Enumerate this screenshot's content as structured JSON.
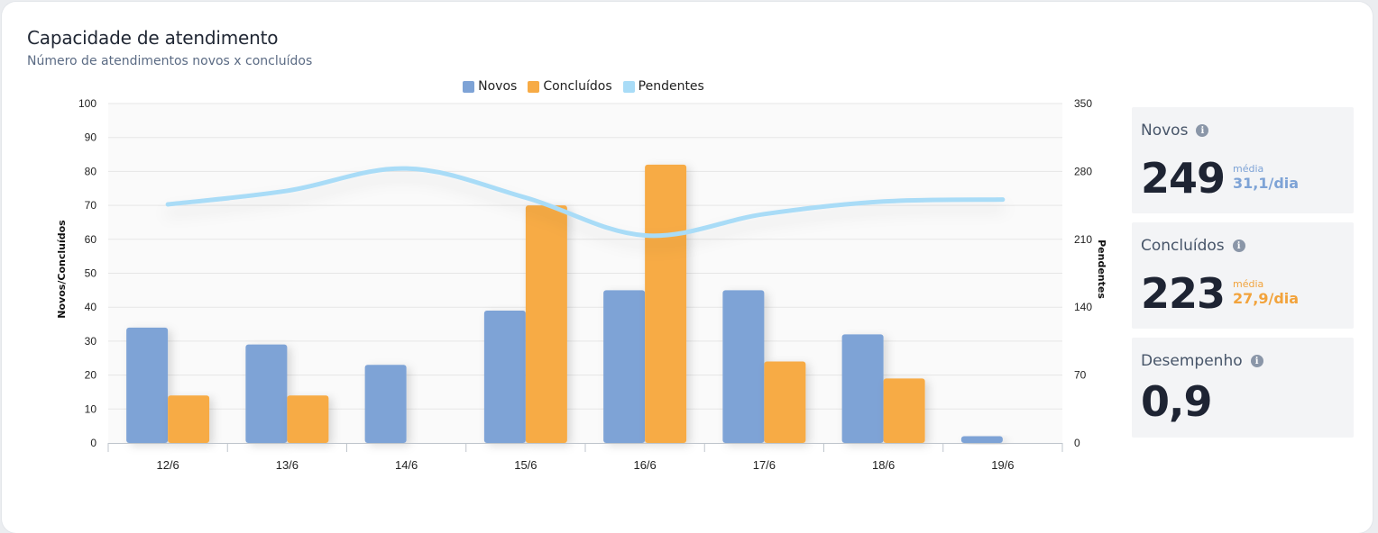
{
  "card": {
    "title": "Capacidade de atendimento",
    "subtitle": "Número de atendimentos novos x concluídos"
  },
  "colors": {
    "novos": "#7ea3d6",
    "concluidos": "#f7ab45",
    "pendentes": "#a9dcf7",
    "media_novos": "#7ea3d6",
    "media_concluidos": "#f2a33c"
  },
  "chart_data": {
    "type": "bar",
    "categories": [
      "12/6",
      "13/6",
      "14/6",
      "15/6",
      "16/6",
      "17/6",
      "18/6",
      "19/6"
    ],
    "series": [
      {
        "name": "Novos",
        "type": "bar",
        "axis": "left",
        "values": [
          34,
          29,
          23,
          39,
          45,
          45,
          32,
          2
        ]
      },
      {
        "name": "Concluídos",
        "type": "bar",
        "axis": "left",
        "values": [
          14,
          14,
          0,
          70,
          82,
          24,
          19,
          0
        ]
      },
      {
        "name": "Pendentes",
        "type": "line",
        "axis": "right",
        "values": [
          246,
          260,
          283,
          253,
          214,
          236,
          249,
          251
        ]
      }
    ],
    "ylabel": "Novos/Concluídos",
    "y2label": "Pendentes",
    "ylim": [
      0,
      100
    ],
    "y2lim": [
      0,
      350
    ],
    "yticks": [
      0,
      10,
      20,
      30,
      40,
      50,
      60,
      70,
      80,
      90,
      100
    ],
    "y2ticks": [
      0,
      70,
      140,
      210,
      280,
      350
    ],
    "legend": "top-center",
    "grid": true
  },
  "stats": [
    {
      "label": "Novos",
      "value": "249",
      "avg_label": "média",
      "avg_value": "31,1/dia",
      "color_key": "media_novos"
    },
    {
      "label": "Concluídos",
      "value": "223",
      "avg_label": "média",
      "avg_value": "27,9/dia",
      "color_key": "media_concluidos"
    },
    {
      "label": "Desempenho",
      "value": "0,9"
    }
  ],
  "icons": {
    "info": "info-circle-icon"
  }
}
